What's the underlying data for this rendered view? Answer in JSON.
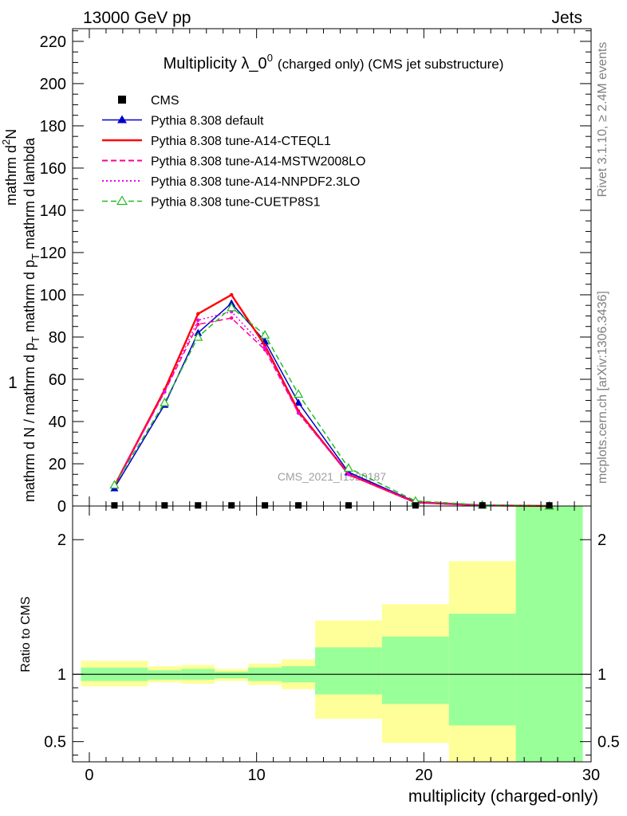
{
  "header": {
    "left": "13000 GeV pp",
    "right": "Jets"
  },
  "side": {
    "rivet": "Rivet 3.1.10, ≥ 2.4M events",
    "mcplots": "mcplots.cern.ch [arXiv:1306.3436]"
  },
  "watermark": "CMS_2021_I1920187",
  "colors": {
    "cms": "#000000",
    "default": "#0000cc",
    "cteql1": "#ff0000",
    "mstw": "#ff0090",
    "nnpdf": "#ee00ee",
    "cuetp8s1": "#22bb22",
    "band_green": "#99ff99",
    "band_yellow": "#ffff99"
  },
  "chart_data": {
    "type": "line",
    "title_main": "Multiplicity λ_0",
    "title_sup": "0",
    "title_tail": "(charged only) (CMS jet substructure)",
    "ylabel_num": "1",
    "ylabel_line1": "mathrm d N / mathrm d p",
    "ylabel_sub1": "T",
    "ylabel_line2": " mathrm d p",
    "ylabel_sub2": "T",
    "ylabel_line3": " mathrm d lambda",
    "ylabel_num_line1": "mathrm d",
    "ylabel_num_sup": "2",
    "ylabel_num_line2": "N",
    "ratio_ylabel": "Ratio to CMS",
    "xlabel": "multiplicity (charged-only)",
    "xlim": [
      -1,
      30
    ],
    "ylim": [
      0,
      226
    ],
    "ratio_ylim": [
      0.35,
      2.25
    ],
    "x_ticks": [
      "0",
      "10",
      "20",
      "30"
    ],
    "y_ticks": [
      "0",
      "20",
      "40",
      "60",
      "80",
      "100",
      "120",
      "140",
      "160",
      "180",
      "200",
      "220"
    ],
    "ratio_ticks": [
      "0.5",
      "1",
      "2"
    ],
    "legend": {
      "cms": "CMS",
      "default": "Pythia 8.308 default",
      "cteql1": "Pythia 8.308 tune-A14-CTEQL1",
      "mstw": "Pythia 8.308 tune-A14-MSTW2008LO",
      "nnpdf": "Pythia 8.308 tune-A14-NNPDF2.3LO",
      "cuetp8s1": "Pythia 8.308 tune-CUETP8S1"
    },
    "cms": {
      "x": [
        1.5,
        4.5,
        6.5,
        8.5,
        10.5,
        12.5,
        15.5,
        19.5,
        23.5,
        27.5
      ],
      "y": [
        0.3,
        0.3,
        0.3,
        0.3,
        0.3,
        0.3,
        0.3,
        0.3,
        0.3,
        0.3
      ]
    },
    "x": [
      1.5,
      4.5,
      6.5,
      8.5,
      10.5,
      12.5,
      15.5,
      19.5,
      23.5,
      27.5
    ],
    "series": [
      {
        "key": "default",
        "name": "Pythia 8.308 default",
        "style": "solid",
        "marker": "triangle-filled",
        "values": [
          8.5,
          48,
          82,
          96,
          78,
          49,
          16,
          2,
          0.4,
          0.05
        ]
      },
      {
        "key": "cteql1",
        "name": "Pythia 8.308 tune-A14-CTEQL1",
        "style": "solid-thick",
        "marker": "dot",
        "values": [
          9.5,
          55,
          91,
          100,
          76,
          45,
          15,
          1.7,
          0.3,
          0.04
        ]
      },
      {
        "key": "mstw",
        "name": "Pythia 8.308 tune-A14-MSTW2008LO",
        "style": "dashed",
        "marker": "dot",
        "values": [
          9.5,
          54,
          86,
          89,
          74,
          44,
          15,
          1.6,
          0.3,
          0.04
        ]
      },
      {
        "key": "nnpdf",
        "name": "Pythia 8.308 tune-A14-NNPDF2.3LO",
        "style": "dotted",
        "marker": "dot",
        "values": [
          9.5,
          54,
          88,
          92,
          75,
          44,
          15,
          1.7,
          0.3,
          0.04
        ]
      },
      {
        "key": "cuetp8s1",
        "name": "Pythia 8.308 tune-CUETP8S1",
        "style": "dashed",
        "marker": "triangle-open",
        "values": [
          10,
          49,
          80,
          94,
          81,
          53,
          18,
          2.4,
          0.5,
          0.06
        ]
      }
    ],
    "ratio_bands": [
      {
        "x_lo": -0.5,
        "x_hi": 3.5,
        "green_lo": 0.95,
        "green_hi": 1.05,
        "yellow_lo": 0.91,
        "yellow_hi": 1.1
      },
      {
        "x_lo": 3.5,
        "x_hi": 5.5,
        "green_lo": 0.96,
        "green_hi": 1.03,
        "yellow_lo": 0.94,
        "yellow_hi": 1.06
      },
      {
        "x_lo": 5.5,
        "x_hi": 7.5,
        "green_lo": 0.96,
        "green_hi": 1.04,
        "yellow_lo": 0.93,
        "yellow_hi": 1.07
      },
      {
        "x_lo": 7.5,
        "x_hi": 9.5,
        "green_lo": 0.97,
        "green_hi": 1.02,
        "yellow_lo": 0.95,
        "yellow_hi": 1.04
      },
      {
        "x_lo": 9.5,
        "x_hi": 11.5,
        "green_lo": 0.95,
        "green_hi": 1.05,
        "yellow_lo": 0.92,
        "yellow_hi": 1.08
      },
      {
        "x_lo": 11.5,
        "x_hi": 13.5,
        "green_lo": 0.94,
        "green_hi": 1.06,
        "yellow_lo": 0.89,
        "yellow_hi": 1.11
      },
      {
        "x_lo": 13.5,
        "x_hi": 17.5,
        "green_lo": 0.85,
        "green_hi": 1.2,
        "yellow_lo": 0.67,
        "yellow_hi": 1.4
      },
      {
        "x_lo": 17.5,
        "x_hi": 21.5,
        "green_lo": 0.78,
        "green_hi": 1.28,
        "yellow_lo": 0.49,
        "yellow_hi": 1.52
      },
      {
        "x_lo": 21.5,
        "x_hi": 25.5,
        "green_lo": 0.62,
        "green_hi": 1.45,
        "yellow_lo": 0.35,
        "yellow_hi": 1.84
      },
      {
        "x_lo": 25.5,
        "x_hi": 29.5,
        "green_lo": 0.35,
        "green_hi": 2.25,
        "yellow_lo": 0.35,
        "yellow_hi": 2.25
      }
    ]
  }
}
